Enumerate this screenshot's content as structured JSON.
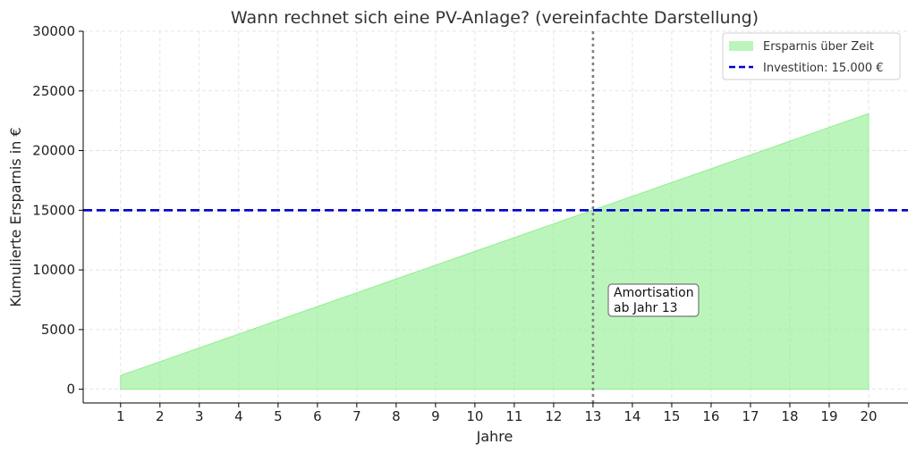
{
  "chart_data": {
    "type": "area",
    "title": "Wann rechnet sich eine PV-Anlage? (vereinfachte Darstellung)",
    "xlabel": "Jahre",
    "ylabel": "Kumulierte Ersparnis in €",
    "xlim": [
      0.05,
      21.0
    ],
    "ylim": [
      -1150,
      30000
    ],
    "x": [
      1,
      2,
      3,
      4,
      5,
      6,
      7,
      8,
      9,
      10,
      11,
      12,
      13,
      14,
      15,
      16,
      17,
      18,
      19,
      20
    ],
    "x_ticks": [
      "1",
      "2",
      "3",
      "4",
      "5",
      "6",
      "7",
      "8",
      "9",
      "10",
      "11",
      "12",
      "13",
      "14",
      "15",
      "16",
      "17",
      "18",
      "19",
      "20"
    ],
    "y_ticks": [
      "0",
      "5000",
      "10000",
      "15000",
      "20000",
      "25000",
      "30000"
    ],
    "series": [
      {
        "name": "Ersparnis über Zeit",
        "color": "#90ee90",
        "values": [
          1155,
          2310,
          3465,
          4620,
          5775,
          6930,
          8085,
          9240,
          10395,
          11550,
          12705,
          13860,
          15015,
          16170,
          17325,
          18480,
          19635,
          20790,
          21945,
          23100
        ]
      }
    ],
    "reference_lines": [
      {
        "name": "Investition: 15.000 €",
        "orientation": "horizontal",
        "value": 15000,
        "color": "#0000cc",
        "style": "dashed"
      },
      {
        "orientation": "vertical",
        "value": 13,
        "color": "#808080",
        "style": "dotted"
      }
    ],
    "annotation": {
      "lines": [
        "Amortisation",
        "ab Jahr 13"
      ],
      "x": 13.5,
      "y": 7500
    },
    "legend": {
      "placement": "top-right",
      "entries": [
        "Ersparnis über Zeit",
        "Investition: 15.000 €"
      ]
    },
    "grid": true
  }
}
